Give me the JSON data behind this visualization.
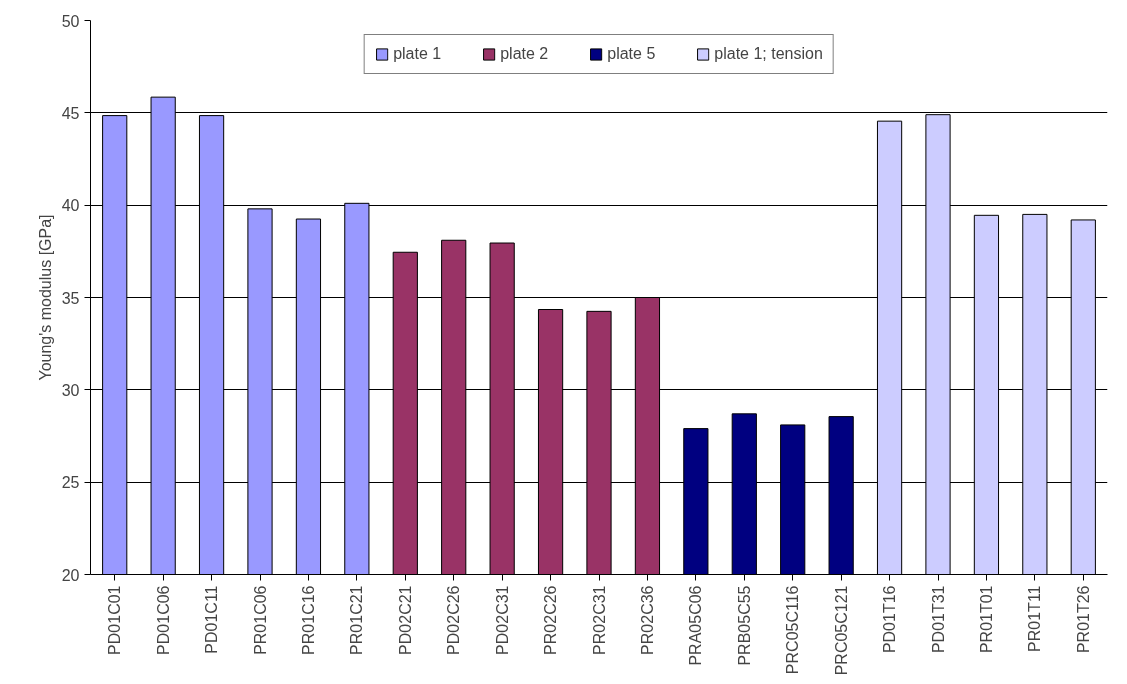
{
  "chart_data": {
    "type": "bar",
    "ylabel": "Young's modulus [GPa]",
    "categories": [
      "PD01C01",
      "PD01C06",
      "PD01C11",
      "PR01C06",
      "PR01C16",
      "PR01C21",
      "PD02C21",
      "PD02C26",
      "PD02C31",
      "PR02C26",
      "PR02C31",
      "PR02C36",
      "PRA05C06",
      "PRB05C55",
      "PRC05C116",
      "PRC05C121",
      "PD01T16",
      "PD01T31",
      "PR01T01",
      "PR01T11",
      "PR01T26"
    ],
    "series": [
      {
        "name": "plate 1",
        "color": "#9999ff",
        "values": [
          44.85,
          45.85,
          44.85,
          39.8,
          39.25,
          40.1,
          null,
          null,
          null,
          null,
          null,
          null,
          null,
          null,
          null,
          null,
          null,
          null,
          null,
          null,
          null
        ]
      },
      {
        "name": "plate 2",
        "color": "#993366",
        "values": [
          null,
          null,
          null,
          null,
          null,
          null,
          37.45,
          38.1,
          37.95,
          34.35,
          34.25,
          35.0,
          null,
          null,
          null,
          null,
          null,
          null,
          null,
          null,
          null
        ]
      },
      {
        "name": "plate 5",
        "color": "#000080",
        "values": [
          null,
          null,
          null,
          null,
          null,
          null,
          null,
          null,
          null,
          null,
          null,
          null,
          27.9,
          28.7,
          28.1,
          28.55,
          null,
          null,
          null,
          null,
          null
        ]
      },
      {
        "name": "plate 1; tension",
        "color": "#ccccff",
        "values": [
          null,
          null,
          null,
          null,
          null,
          null,
          null,
          null,
          null,
          null,
          null,
          null,
          null,
          null,
          null,
          null,
          44.55,
          44.9,
          39.45,
          39.5,
          39.2
        ]
      }
    ],
    "ylim": [
      20,
      50
    ],
    "yticks": [
      20,
      25,
      30,
      35,
      40,
      45,
      50
    ],
    "grid": "y",
    "legend": "top",
    "stacked": false
  }
}
